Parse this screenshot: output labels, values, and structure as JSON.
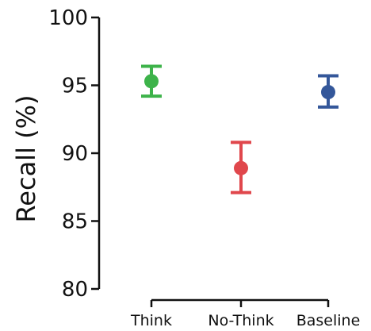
{
  "chart_data": {
    "type": "scatter",
    "title": "",
    "xlabel": "",
    "ylabel": "Recall (%)",
    "ylim": [
      80,
      100
    ],
    "yticks": [
      80,
      85,
      90,
      95,
      100
    ],
    "grid": false,
    "categories": [
      "Think",
      "No-Think",
      "Baseline"
    ],
    "series": [
      {
        "values": [
          95.3,
          88.9,
          94.5
        ],
        "error_low": [
          94.2,
          87.1,
          93.4
        ],
        "error_high": [
          96.4,
          90.8,
          95.7
        ],
        "colors": [
          "#3db34a",
          "#e0474c",
          "#34579a"
        ]
      }
    ]
  }
}
